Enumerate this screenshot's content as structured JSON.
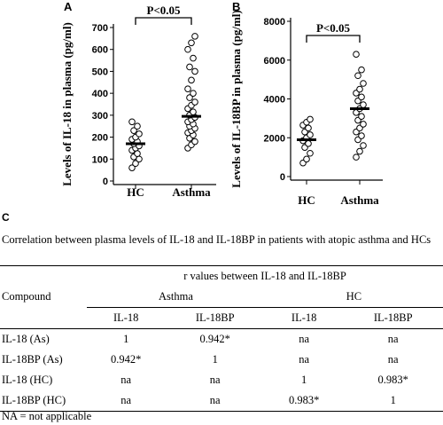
{
  "panels": {
    "A": "A",
    "B": "B",
    "C": "C"
  },
  "chart_data": [
    {
      "type": "scatter",
      "panel": "A",
      "ylabel": "Levels of IL-18 in plasma (pg/ml)",
      "categories": [
        "HC",
        "Asthma"
      ],
      "ylim": [
        0,
        700
      ],
      "yticks": [
        0,
        100,
        200,
        300,
        400,
        500,
        600,
        700
      ],
      "significance": "P<0.05",
      "means": [
        170,
        295
      ],
      "series": [
        {
          "category": "HC",
          "values": [
            60,
            80,
            100,
            110,
            125,
            140,
            150,
            160,
            170,
            180,
            190,
            200,
            215,
            230,
            250,
            270
          ]
        },
        {
          "category": "Asthma",
          "values": [
            150,
            165,
            180,
            195,
            210,
            220,
            230,
            240,
            250,
            260,
            270,
            280,
            290,
            300,
            315,
            330,
            345,
            360,
            380,
            400,
            420,
            460,
            500,
            520,
            560,
            600,
            630,
            660
          ]
        }
      ]
    },
    {
      "type": "scatter",
      "panel": "B",
      "ylabel": "Levels of IL-18BP in plasma (pg/ml)",
      "categories": [
        "HC",
        "Asthma"
      ],
      "ylim": [
        0,
        8000
      ],
      "yticks": [
        0,
        2000,
        4000,
        6000,
        8000
      ],
      "significance": "P<0.05",
      "means": [
        1900,
        3500
      ],
      "series": [
        {
          "category": "HC",
          "values": [
            700,
            900,
            1200,
            1500,
            1700,
            1850,
            2000,
            2150,
            2300,
            2500,
            2650,
            2800,
            2950
          ]
        },
        {
          "category": "Asthma",
          "values": [
            1000,
            1300,
            1600,
            1900,
            2100,
            2300,
            2500,
            2700,
            2900,
            3100,
            3300,
            3500,
            3700,
            3900,
            4100,
            4300,
            4500,
            4800,
            5200,
            5500,
            6300
          ]
        }
      ]
    }
  ],
  "caption": "Correlation between plasma levels of IL-18 and IL-18BP in patients with atopic asthma and HCs",
  "table": {
    "super_header": "r values between IL-18 and IL-18BP",
    "compound_label": "Compound",
    "group_asthma": "Asthma",
    "group_hc": "HC",
    "sub_headers": [
      "IL-18",
      "IL-18BP",
      "IL-18",
      "IL-18BP"
    ],
    "rows": [
      {
        "label": "IL-18 (As)",
        "cells": [
          "1",
          "0.942*",
          "na",
          "na"
        ]
      },
      {
        "label": "IL-18BP (As)",
        "cells": [
          "0.942*",
          "1",
          "na",
          "na"
        ]
      },
      {
        "label": "IL-18 (HC)",
        "cells": [
          "na",
          "na",
          "1",
          "0.983*"
        ]
      },
      {
        "label": "IL-18BP (HC)",
        "cells": [
          "na",
          "na",
          "0.983*",
          "1"
        ]
      }
    ]
  },
  "footnote": "NA = not applicable"
}
